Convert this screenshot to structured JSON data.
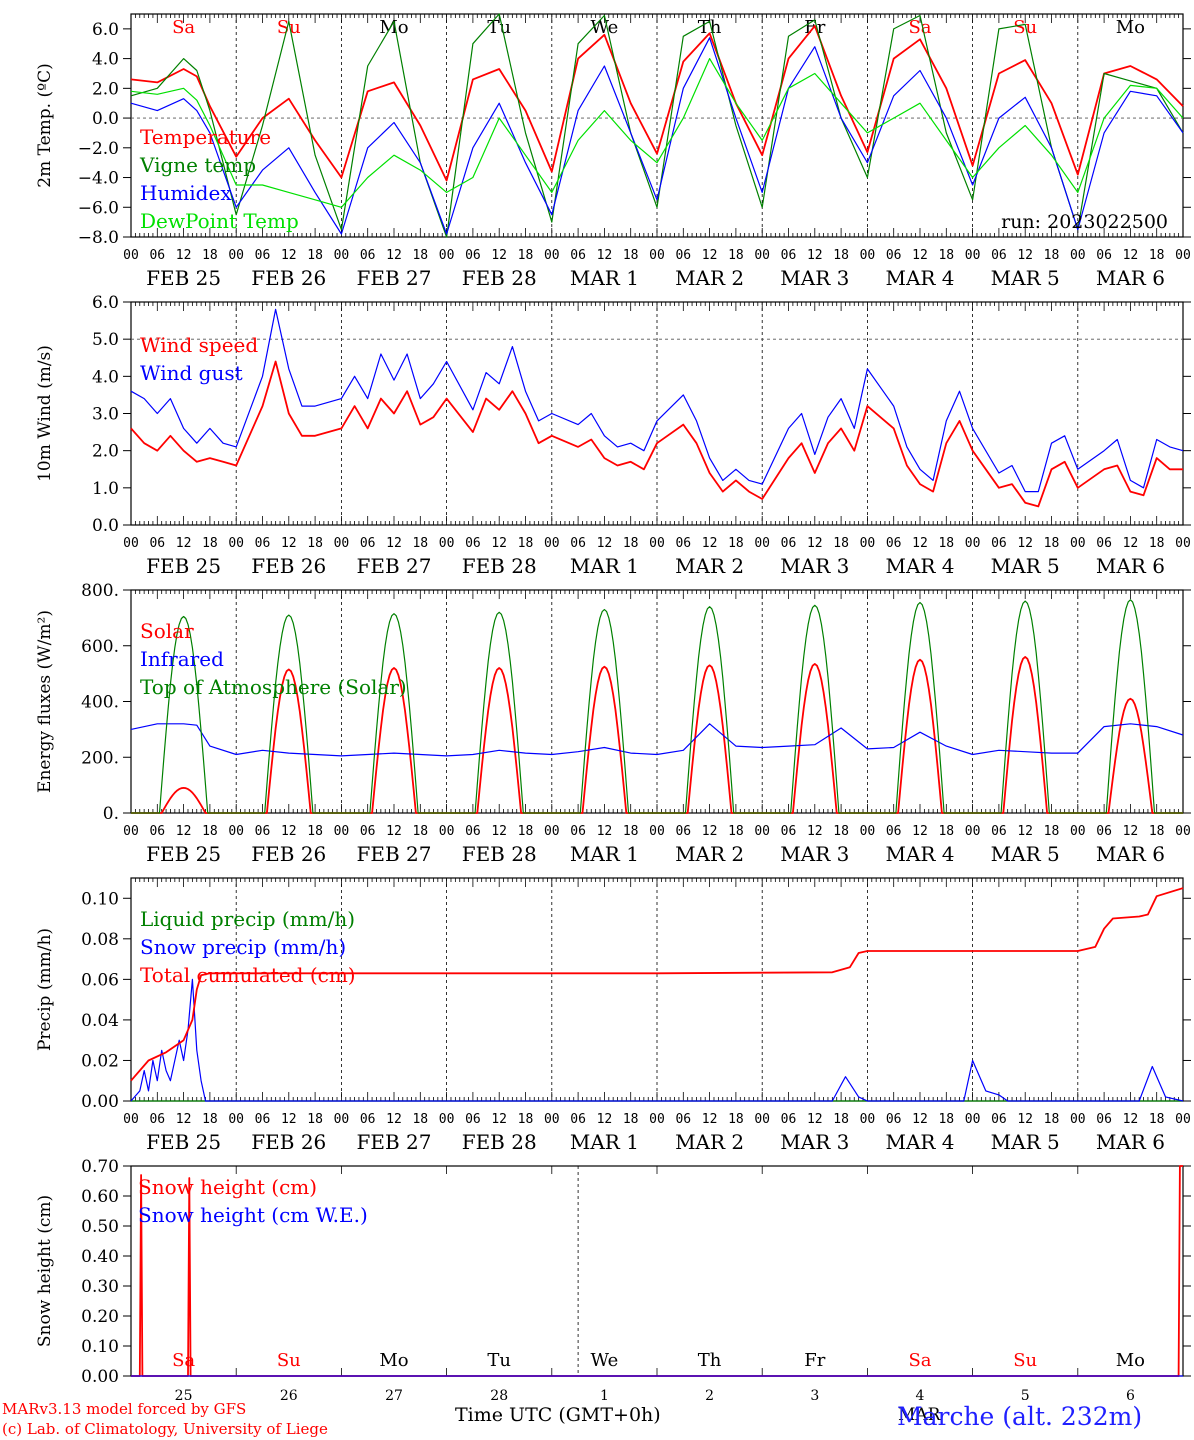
{
  "days": [
    "Sa",
    "Su",
    "Mo",
    "Tu",
    "We",
    "Th",
    "Fr",
    "Sa",
    "Su",
    "Mo"
  ],
  "day_colors": [
    "#ff0000",
    "#ff0000",
    "#000000",
    "#000000",
    "#000000",
    "#000000",
    "#000000",
    "#ff0000",
    "#ff0000",
    "#000000"
  ],
  "dates": [
    "FEB  25",
    "FEB  26",
    "FEB  27",
    "FEB 28",
    "MAR   1",
    "MAR   2",
    "MAR   3",
    "MAR   4",
    "MAR   5",
    "MAR   6"
  ],
  "day_numbers": [
    "25",
    "26",
    "27",
    "28",
    "1",
    "2",
    "3",
    "4",
    "5",
    "6"
  ],
  "hour_labels": [
    "00",
    "06",
    "12",
    "18"
  ],
  "end_hour_label": "00",
  "colors": {
    "red": "#ff0000",
    "green": "#008000",
    "blue": "#0000ff",
    "lightgreen": "#00e000",
    "axis": "#000000"
  },
  "footer": {
    "model": "MARv3.13 model forced by GFS",
    "lab": "(c) Lab. of Climatology, University of Liege",
    "xlabel": "Time UTC (GMT+0h)",
    "month_partial": "MAR",
    "station": "Marche (alt. 232m)"
  },
  "chart_data": [
    {
      "type": "line",
      "ylabel": "2m Temp. (ºC)",
      "ylim": [
        -8,
        7
      ],
      "yticks": [
        "6.0",
        "4.0",
        "2.0",
        "0.0",
        "−2.0",
        "−4.0",
        "−6.0",
        "−8.0"
      ],
      "ytick_values": [
        6,
        4,
        2,
        0,
        -2,
        -4,
        -6,
        -8
      ],
      "dashed_y": 0,
      "annotation": "run: 2023022500",
      "x_unit": "hours since FEB 25 00 UTC",
      "series": [
        {
          "name": "Temperature",
          "color": "red",
          "x": [
            0,
            6,
            12,
            15,
            18,
            24,
            30,
            36,
            42,
            48,
            54,
            60,
            66,
            72,
            78,
            84,
            90,
            96,
            102,
            108,
            114,
            120,
            126,
            132,
            138,
            144,
            150,
            156,
            162,
            168,
            174,
            180,
            186,
            192,
            198,
            204,
            210,
            216,
            222,
            228,
            234,
            240
          ],
          "y": [
            2.6,
            2.4,
            3.3,
            2.8,
            0.8,
            -2.6,
            0,
            1.3,
            -1.5,
            -4,
            1.8,
            2.4,
            -0.5,
            -4.2,
            2.6,
            3.3,
            0.5,
            -3.6,
            4,
            5.6,
            1,
            -2.4,
            3.8,
            5.7,
            1,
            -2.5,
            4,
            6.2,
            1.5,
            -2.3,
            4,
            5.3,
            2,
            -3.2,
            3,
            3.9,
            1,
            -3.8,
            3,
            3.5,
            2.6,
            0.8
          ]
        },
        {
          "name": "Vigne temp",
          "color": "green",
          "x": [
            0,
            6,
            12,
            15,
            18,
            24,
            30,
            36,
            42,
            48,
            54,
            60,
            66,
            72,
            78,
            84,
            90,
            96,
            102,
            108,
            114,
            120,
            126,
            132,
            138,
            144,
            150,
            156,
            162,
            168,
            174,
            180,
            186,
            192,
            198,
            204,
            210,
            216,
            222,
            228,
            234,
            240
          ],
          "y": [
            1.5,
            2.0,
            4.0,
            3.2,
            0.5,
            -6.5,
            -0.5,
            6.5,
            -2.5,
            -7.5,
            3.5,
            6.5,
            -3,
            -8,
            5,
            7,
            -1,
            -7,
            5,
            6.9,
            -1,
            -6,
            5.5,
            6.5,
            -0.5,
            -6,
            5.5,
            6.6,
            0,
            -4,
            6,
            6.9,
            -1,
            -5.5,
            6,
            6.3,
            -2,
            -7.5,
            3,
            2.5,
            2,
            -1
          ]
        },
        {
          "name": "Humidex",
          "color": "blue",
          "x": [
            0,
            6,
            12,
            15,
            18,
            24,
            30,
            36,
            42,
            48,
            54,
            60,
            66,
            72,
            78,
            84,
            90,
            96,
            102,
            108,
            114,
            120,
            126,
            132,
            138,
            144,
            150,
            156,
            162,
            168,
            174,
            180,
            186,
            192,
            198,
            204,
            210,
            216,
            222,
            228,
            234,
            240
          ],
          "y": [
            1,
            0.5,
            1.3,
            0.5,
            -1,
            -6,
            -3.5,
            -2,
            -5,
            -7.8,
            -2,
            -0.3,
            -3,
            -7.8,
            -2,
            1,
            -3,
            -6.5,
            0.5,
            3.5,
            -1,
            -5.5,
            2,
            5.4,
            0,
            -5,
            2,
            4.8,
            0,
            -3,
            1.5,
            3.2,
            0,
            -4.5,
            0,
            1.4,
            -2,
            -7.5,
            -1,
            1.8,
            1.5,
            -1
          ]
        },
        {
          "name": "DewPoint Temp",
          "color": "lightgreen",
          "x": [
            0,
            6,
            12,
            15,
            18,
            24,
            30,
            36,
            42,
            48,
            54,
            60,
            66,
            72,
            78,
            84,
            90,
            96,
            102,
            108,
            114,
            120,
            126,
            132,
            138,
            144,
            150,
            156,
            162,
            168,
            174,
            180,
            186,
            192,
            198,
            204,
            210,
            216,
            222,
            228,
            234,
            240
          ],
          "y": [
            1.8,
            1.6,
            2.0,
            1.2,
            -0.5,
            -4.5,
            -4.5,
            -5,
            -5.5,
            -6,
            -4,
            -2.5,
            -3.5,
            -5,
            -4,
            0,
            -2.5,
            -5,
            -1.5,
            0.5,
            -1.5,
            -3,
            0,
            4,
            1,
            -1.5,
            2,
            3,
            1,
            -1,
            0,
            1,
            -1.5,
            -4,
            -2,
            -0.5,
            -2.5,
            -5,
            0,
            2.2,
            2,
            0
          ]
        }
      ]
    },
    {
      "type": "line",
      "ylabel": "10m Wind (m/s)",
      "ylim": [
        0,
        6
      ],
      "yticks": [
        "6.0",
        "5.0",
        "4.0",
        "3.0",
        "2.0",
        "1.0",
        "0.0"
      ],
      "ytick_values": [
        6,
        5,
        4,
        3,
        2,
        1,
        0
      ],
      "dashed_y": 5,
      "x_unit": "hours since FEB 25 00 UTC",
      "series": [
        {
          "name": "Wind speed",
          "color": "red",
          "x": [
            0,
            3,
            6,
            9,
            12,
            15,
            18,
            21,
            24,
            30,
            33,
            36,
            39,
            42,
            48,
            51,
            54,
            57,
            60,
            63,
            66,
            69,
            72,
            78,
            81,
            84,
            87,
            90,
            93,
            96,
            102,
            105,
            108,
            111,
            114,
            117,
            120,
            126,
            129,
            132,
            135,
            138,
            141,
            144,
            150,
            153,
            156,
            159,
            162,
            165,
            168,
            174,
            177,
            180,
            183,
            186,
            189,
            192,
            198,
            201,
            204,
            207,
            210,
            213,
            216,
            222,
            225,
            228,
            231,
            234,
            237,
            240
          ],
          "y": [
            2.6,
            2.2,
            2.0,
            2.4,
            2.0,
            1.7,
            1.8,
            1.7,
            1.6,
            3.2,
            4.4,
            3.0,
            2.4,
            2.4,
            2.6,
            3.2,
            2.6,
            3.4,
            3.0,
            3.6,
            2.7,
            2.9,
            3.4,
            2.5,
            3.4,
            3.1,
            3.6,
            3.0,
            2.2,
            2.4,
            2.1,
            2.3,
            1.8,
            1.6,
            1.7,
            1.5,
            2.2,
            2.7,
            2.2,
            1.4,
            0.9,
            1.2,
            0.9,
            0.7,
            1.8,
            2.2,
            1.4,
            2.2,
            2.6,
            2.0,
            3.2,
            2.6,
            1.6,
            1.1,
            0.9,
            2.2,
            2.8,
            2.0,
            1.0,
            1.1,
            0.6,
            0.5,
            1.5,
            1.7,
            1.0,
            1.5,
            1.6,
            0.9,
            0.8,
            1.8,
            1.5,
            1.5
          ]
        },
        {
          "name": "Wind gust",
          "color": "blue",
          "x": [
            0,
            3,
            6,
            9,
            12,
            15,
            18,
            21,
            24,
            30,
            33,
            36,
            39,
            42,
            48,
            51,
            54,
            57,
            60,
            63,
            66,
            69,
            72,
            78,
            81,
            84,
            87,
            90,
            93,
            96,
            102,
            105,
            108,
            111,
            114,
            117,
            120,
            126,
            129,
            132,
            135,
            138,
            141,
            144,
            150,
            153,
            156,
            159,
            162,
            165,
            168,
            174,
            177,
            180,
            183,
            186,
            189,
            192,
            198,
            201,
            204,
            207,
            210,
            213,
            216,
            222,
            225,
            228,
            231,
            234,
            237,
            240
          ],
          "y": [
            3.6,
            3.4,
            3.0,
            3.4,
            2.6,
            2.2,
            2.6,
            2.2,
            2.1,
            4.0,
            5.8,
            4.2,
            3.2,
            3.2,
            3.4,
            4.0,
            3.4,
            4.6,
            3.9,
            4.6,
            3.4,
            3.8,
            4.4,
            3.1,
            4.1,
            3.8,
            4.8,
            3.6,
            2.8,
            3.0,
            2.7,
            3.0,
            2.4,
            2.1,
            2.2,
            2.0,
            2.8,
            3.5,
            2.8,
            1.8,
            1.2,
            1.5,
            1.2,
            1.1,
            2.6,
            3.0,
            1.9,
            2.9,
            3.4,
            2.6,
            4.2,
            3.2,
            2.1,
            1.5,
            1.2,
            2.8,
            3.6,
            2.6,
            1.4,
            1.6,
            0.9,
            0.9,
            2.2,
            2.4,
            1.5,
            2.0,
            2.3,
            1.2,
            1.0,
            2.3,
            2.1,
            2.0
          ]
        }
      ]
    },
    {
      "type": "line",
      "ylabel": "Energy fluxes (W/m²)",
      "ylim": [
        0,
        800
      ],
      "yticks": [
        "800.",
        "600.",
        "400.",
        "200.",
        "0."
      ],
      "ytick_values": [
        800,
        600,
        400,
        200,
        0
      ],
      "x_unit": "hours since FEB 25 00 UTC",
      "series": [
        {
          "name": "Solar",
          "color": "red",
          "peaks": [
            90,
            515,
            520,
            520,
            525,
            530,
            535,
            550,
            560,
            410
          ],
          "day_length": 10
        },
        {
          "name": "Infrared",
          "color": "blue",
          "x": [
            0,
            6,
            12,
            15,
            18,
            24,
            30,
            36,
            42,
            48,
            54,
            60,
            66,
            72,
            78,
            84,
            90,
            96,
            102,
            108,
            114,
            120,
            126,
            132,
            138,
            144,
            150,
            156,
            162,
            168,
            174,
            180,
            186,
            192,
            198,
            204,
            210,
            216,
            222,
            228,
            234,
            240
          ],
          "y": [
            300,
            320,
            320,
            315,
            240,
            210,
            225,
            215,
            210,
            205,
            210,
            215,
            210,
            205,
            210,
            225,
            215,
            210,
            220,
            235,
            215,
            210,
            225,
            320,
            240,
            235,
            240,
            245,
            305,
            230,
            235,
            290,
            240,
            210,
            225,
            220,
            215,
            215,
            310,
            320,
            310,
            280
          ]
        },
        {
          "name": "Top of Atmosphere (Solar)",
          "color": "green",
          "peaks": [
            705,
            710,
            715,
            720,
            730,
            740,
            745,
            755,
            760,
            765
          ],
          "day_length": 11
        }
      ]
    },
    {
      "type": "line",
      "ylabel": "Precip (mm/h)",
      "ylim": [
        0,
        0.11
      ],
      "yticks": [
        "0.10",
        "0.08",
        "0.06",
        "0.04",
        "0.02",
        "0.00"
      ],
      "ytick_values": [
        0.1,
        0.08,
        0.06,
        0.04,
        0.02,
        0.0
      ],
      "x_unit": "hours since FEB 25 00 UTC",
      "series": [
        {
          "name": "Liquid precip (mm/h)",
          "color": "green",
          "x": [
            0,
            240
          ],
          "y": [
            0,
            0
          ]
        },
        {
          "name": "Snow precip (mm/h)",
          "color": "blue",
          "x": [
            0,
            2,
            3,
            4,
            5,
            6,
            7,
            8,
            9,
            10,
            11,
            12,
            13,
            14,
            15,
            16,
            17,
            24,
            160,
            163,
            166,
            168,
            190,
            192,
            195,
            198,
            200,
            230,
            233,
            236,
            240
          ],
          "y": [
            0,
            0.005,
            0.015,
            0.005,
            0.02,
            0.01,
            0.025,
            0.015,
            0.01,
            0.02,
            0.03,
            0.02,
            0.035,
            0.06,
            0.025,
            0.01,
            0,
            0,
            0,
            0.012,
            0.002,
            0,
            0,
            0.02,
            0.005,
            0.003,
            0,
            0,
            0.017,
            0.002,
            0
          ]
        },
        {
          "name": "Total cumulated (cm)",
          "color": "red",
          "x": [
            0,
            4,
            8,
            12,
            14,
            15,
            16,
            18,
            24,
            48,
            96,
            120,
            160,
            164,
            166,
            168,
            192,
            216,
            220,
            222,
            224,
            230,
            232,
            234,
            240
          ],
          "y": [
            0.01,
            0.02,
            0.024,
            0.03,
            0.04,
            0.055,
            0.062,
            0.063,
            0.063,
            0.063,
            0.063,
            0.063,
            0.0635,
            0.066,
            0.073,
            0.074,
            0.074,
            0.074,
            0.076,
            0.085,
            0.09,
            0.091,
            0.092,
            0.101,
            0.105
          ]
        }
      ]
    },
    {
      "type": "line",
      "ylabel": "Snow height (cm)",
      "ylim": [
        0,
        0.7
      ],
      "yticks": [
        "0.70",
        "0.60",
        "0.50",
        "0.40",
        "0.30",
        "0.20",
        "0.10",
        "0.00"
      ],
      "ytick_values": [
        0.7,
        0.6,
        0.5,
        0.4,
        0.3,
        0.2,
        0.1,
        0.0
      ],
      "x_unit": "hours since FEB 25 00 UTC",
      "series": [
        {
          "name": "Snow height (cm)",
          "color": "red",
          "x": [
            0,
            2,
            2.3,
            2.6,
            3,
            13,
            13.3,
            13.6,
            14,
            239,
            239.3,
            240
          ],
          "y": [
            0,
            0,
            0.67,
            0,
            0,
            0,
            0.66,
            0,
            0,
            0,
            0.7,
            0.7
          ]
        },
        {
          "name": "Snow height (cm W.E.)",
          "color": "blue",
          "x": [
            0,
            240
          ],
          "y": [
            0,
            0
          ]
        }
      ]
    }
  ]
}
